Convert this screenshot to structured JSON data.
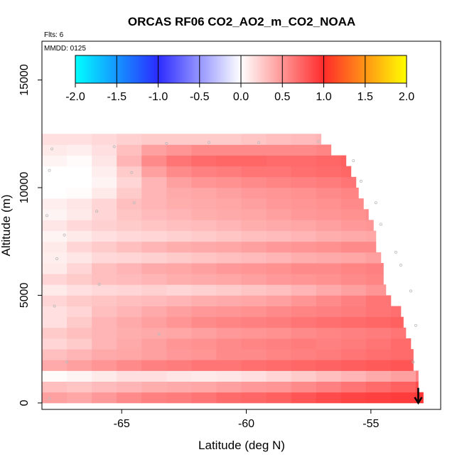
{
  "chart_data": {
    "type": "heatmap",
    "title": "ORCAS RF06 CO2_AO2_m_CO2_NOAA",
    "annotations": {
      "flights": "Flts: 6",
      "date": "MMDD: 0125"
    },
    "xlabel": "Latitude (deg N)",
    "ylabel": "Altitude (m)",
    "xlim": [
      -68.2,
      -52.2
    ],
    "ylim": [
      -300,
      16800
    ],
    "x_ticks": [
      -65,
      -60,
      -55
    ],
    "y_ticks": [
      0,
      5000,
      10000,
      15000
    ],
    "x_tick_labels": [
      "-65",
      "-60",
      "-55"
    ],
    "y_tick_labels": [
      "0",
      "5000",
      "10000",
      "15000"
    ],
    "colorbar": {
      "range": [
        -2.0,
        2.0
      ],
      "ticks": [
        -2.0,
        -1.5,
        -1.0,
        -0.5,
        0.0,
        0.5,
        1.0,
        1.5,
        2.0
      ],
      "tick_labels": [
        "-2.0",
        "-1.5",
        "-1.0",
        "-0.5",
        "0.0",
        "0.5",
        "1.0",
        "1.5",
        "2.0"
      ],
      "colors": [
        "#00ffff",
        "#2b2bff",
        "#ffffff",
        "#ff2b2b",
        "#ffff00"
      ],
      "placement": "top"
    },
    "grid": false,
    "columns_lat": [
      -68.2,
      -67.2,
      -66.2,
      -65.2,
      -64.2,
      -63.2,
      -62.2,
      -61.2,
      -60.2,
      -59.2,
      -58.2,
      -57.2,
      -56.2,
      -55.2,
      -54.2,
      -53.2
    ],
    "rows_alt": [
      0,
      500,
      1000,
      1500,
      2000,
      2500,
      3000,
      3500,
      4000,
      4500,
      5000,
      5500,
      6000,
      6500,
      7000,
      7500,
      8000,
      8500,
      9000,
      9500,
      10000,
      10500,
      11000,
      11500,
      12000
    ],
    "row_top_lat": [
      -52.9,
      -53.1,
      -53.1,
      -53.3,
      -53.3,
      -53.4,
      -53.6,
      -53.7,
      -53.8,
      -54.2,
      -54.4,
      -54.5,
      -54.5,
      -54.6,
      -54.8,
      -54.8,
      -54.9,
      -55.1,
      -55.3,
      -55.5,
      -55.6,
      -55.8,
      -56.0,
      -56.6,
      -57.0
    ],
    "values": [
      [
        0.45,
        0.42,
        0.48,
        0.55,
        0.6,
        0.62,
        0.65,
        0.7,
        0.72,
        0.75,
        0.8,
        0.85,
        0.88,
        0.9,
        0.92,
        0.95
      ],
      [
        0.3,
        0.28,
        0.32,
        0.35,
        0.38,
        0.4,
        0.42,
        0.45,
        0.48,
        0.5,
        0.55,
        0.6,
        0.65,
        0.7,
        0.75,
        0.85
      ],
      [
        0.02,
        0.05,
        0.1,
        0.15,
        0.15,
        0.12,
        0.1,
        0.12,
        0.15,
        0.2,
        0.25,
        0.3,
        0.35,
        0.4,
        0.45,
        0.6
      ],
      [
        0.4,
        0.45,
        0.5,
        0.55,
        0.6,
        0.62,
        0.65,
        0.65,
        0.68,
        0.7,
        0.72,
        0.74,
        0.76,
        0.78,
        0.8,
        0.82
      ],
      [
        0.3,
        0.35,
        0.4,
        0.42,
        0.45,
        0.48,
        0.5,
        0.55,
        0.55,
        0.58,
        0.6,
        0.62,
        0.65,
        0.68,
        0.7,
        0.75
      ],
      [
        0.2,
        0.25,
        0.35,
        0.4,
        0.45,
        0.5,
        0.52,
        0.55,
        0.58,
        0.6,
        0.62,
        0.6,
        0.62,
        0.65,
        0.7,
        0.72
      ],
      [
        0.25,
        0.3,
        0.35,
        0.38,
        0.4,
        0.42,
        0.45,
        0.48,
        0.5,
        0.52,
        0.55,
        0.58,
        0.6,
        0.62,
        0.65,
        0.7
      ],
      [
        0.15,
        0.25,
        0.35,
        0.4,
        0.45,
        0.5,
        0.55,
        0.58,
        0.6,
        0.62,
        0.65,
        0.68,
        0.7,
        0.72,
        0.75,
        0.78
      ],
      [
        0.15,
        0.2,
        0.3,
        0.35,
        0.4,
        0.45,
        0.48,
        0.5,
        0.52,
        0.55,
        0.58,
        0.6,
        0.62,
        0.65,
        0.68,
        0.72
      ],
      [
        0.2,
        0.25,
        0.28,
        0.3,
        0.32,
        0.35,
        0.38,
        0.4,
        0.42,
        0.45,
        0.5,
        0.55,
        0.6,
        0.65,
        0.7,
        0.72
      ],
      [
        0.1,
        0.15,
        0.18,
        0.2,
        0.22,
        0.2,
        0.22,
        0.25,
        0.28,
        0.3,
        0.35,
        0.4,
        0.45,
        0.5,
        0.55,
        0.6
      ],
      [
        0.2,
        0.25,
        0.3,
        0.32,
        0.35,
        0.38,
        0.4,
        0.42,
        0.45,
        0.48,
        0.5,
        0.52,
        0.55,
        0.58,
        0.6,
        0.62
      ],
      [
        0.1,
        0.2,
        0.3,
        0.35,
        0.4,
        0.42,
        0.45,
        0.48,
        0.5,
        0.52,
        0.55,
        0.55,
        0.58,
        0.6,
        0.62,
        0.65
      ],
      [
        0.08,
        0.12,
        0.18,
        0.2,
        0.22,
        0.25,
        0.28,
        0.3,
        0.32,
        0.35,
        0.38,
        0.4,
        0.42,
        0.45,
        0.48,
        0.5
      ],
      [
        0.1,
        0.2,
        0.25,
        0.3,
        0.35,
        0.38,
        0.4,
        0.42,
        0.45,
        0.48,
        0.5,
        0.52,
        0.55,
        0.55,
        0.58,
        0.6
      ],
      [
        0.05,
        0.1,
        0.15,
        0.18,
        0.2,
        0.22,
        0.25,
        0.28,
        0.3,
        0.32,
        0.35,
        0.38,
        0.4,
        0.42,
        0.45,
        0.48
      ],
      [
        0.12,
        0.18,
        0.22,
        0.25,
        0.28,
        0.3,
        0.32,
        0.35,
        0.38,
        0.4,
        0.42,
        0.45,
        0.48,
        0.5,
        0.52,
        0.55
      ],
      [
        0.05,
        0.1,
        0.2,
        0.28,
        0.32,
        0.35,
        0.38,
        0.4,
        0.42,
        0.45,
        0.48,
        0.5,
        0.52,
        0.55,
        0.58,
        0.6
      ],
      [
        0.08,
        0.12,
        0.2,
        0.3,
        0.35,
        0.38,
        0.4,
        0.42,
        0.45,
        0.48,
        0.5,
        0.52,
        0.55,
        0.58,
        0.6,
        0.62
      ],
      [
        0.0,
        0.02,
        0.1,
        0.25,
        0.35,
        0.4,
        0.42,
        0.45,
        0.48,
        0.5,
        0.52,
        0.55,
        0.58,
        0.6,
        0.65,
        0.7
      ],
      [
        0.0,
        0.0,
        0.05,
        0.2,
        0.35,
        0.45,
        0.5,
        0.52,
        0.55,
        0.58,
        0.6,
        0.62,
        0.65,
        0.7,
        0.75,
        0.8
      ],
      [
        0.0,
        0.0,
        0.08,
        0.25,
        0.45,
        0.55,
        0.6,
        0.62,
        0.65,
        0.65,
        0.68,
        0.7,
        0.72,
        0.72,
        0.75,
        0.78
      ],
      [
        0.05,
        0.02,
        0.12,
        0.35,
        0.55,
        0.65,
        0.7,
        0.72,
        0.72,
        0.7,
        0.7,
        0.72,
        0.75,
        0.75,
        0.78,
        0.8
      ],
      [
        0.1,
        0.08,
        0.15,
        0.3,
        0.45,
        0.5,
        0.55,
        0.55,
        0.55,
        0.55,
        0.55,
        0.58,
        0.6,
        0.62,
        0.65,
        0.7
      ],
      [
        0.15,
        0.15,
        0.18,
        0.22,
        0.25,
        0.25,
        0.25,
        0.25,
        0.28,
        0.3,
        0.32,
        0.35,
        0.38,
        0.4,
        0.42,
        0.45
      ]
    ],
    "flight_track_markers": [
      {
        "lat": -67.8,
        "alt": 11800
      },
      {
        "lat": -67.9,
        "alt": 10800
      },
      {
        "lat": -65.3,
        "alt": 11900
      },
      {
        "lat": -64.6,
        "alt": 10700
      },
      {
        "lat": -63.2,
        "alt": 12050
      },
      {
        "lat": -61.5,
        "alt": 12100
      },
      {
        "lat": -59.5,
        "alt": 12100
      },
      {
        "lat": -57.1,
        "alt": 12150
      },
      {
        "lat": -55.7,
        "alt": 11250
      },
      {
        "lat": -55.4,
        "alt": 10300
      },
      {
        "lat": -54.8,
        "alt": 9300
      },
      {
        "lat": -54.6,
        "alt": 8300
      },
      {
        "lat": -54.0,
        "alt": 7000
      },
      {
        "lat": -53.8,
        "alt": 6400
      },
      {
        "lat": -53.4,
        "alt": 5200
      },
      {
        "lat": -53.2,
        "alt": 3600
      },
      {
        "lat": -53.3,
        "alt": 1900
      },
      {
        "lat": -67.7,
        "alt": 4500
      },
      {
        "lat": -67.6,
        "alt": 6700
      },
      {
        "lat": -67.3,
        "alt": 7800
      },
      {
        "lat": -66.0,
        "alt": 8900
      },
      {
        "lat": -64.5,
        "alt": 9300
      },
      {
        "lat": -63.5,
        "alt": 3200
      },
      {
        "lat": -67.2,
        "alt": 1900
      },
      {
        "lat": -67.9,
        "alt": 200
      },
      {
        "lat": -65.9,
        "alt": 5500
      },
      {
        "lat": -68.0,
        "alt": 8700
      }
    ],
    "arrow_annotation": {
      "lat": -53.1,
      "alt_from": 700,
      "alt_to": 0,
      "direction": "down"
    }
  }
}
